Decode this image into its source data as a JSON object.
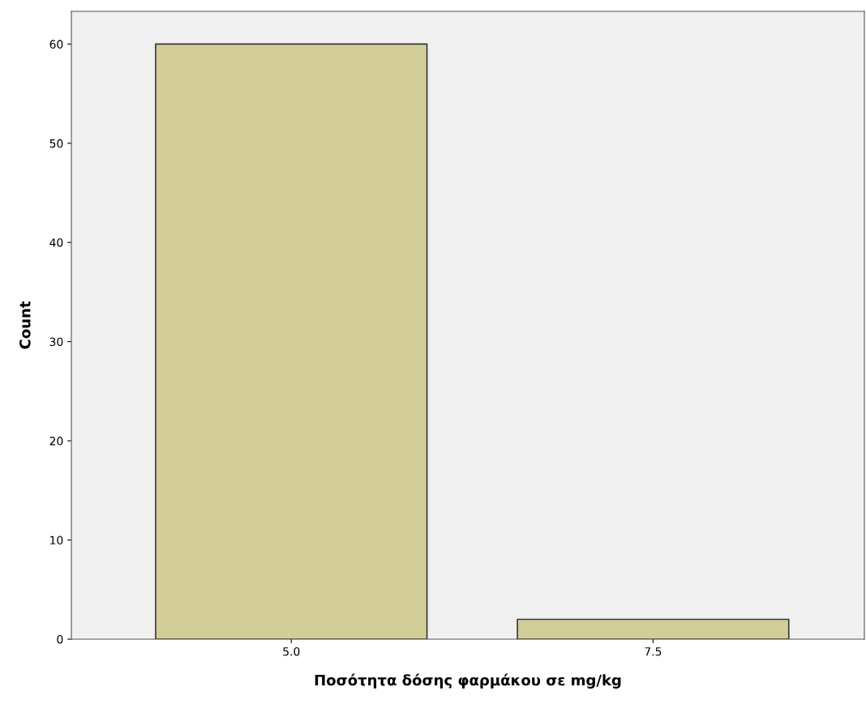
{
  "chart_data": {
    "type": "bar",
    "xlabel": "Ποσότητα δόσης φαρμάκου σε mg/kg",
    "ylabel": "Count",
    "categories": [
      "5.0",
      "7.5"
    ],
    "values": [
      60,
      2
    ],
    "color": "#d3cd98",
    "ylim": [
      0,
      63.3
    ],
    "yticks": [
      0,
      10,
      20,
      30,
      40,
      50,
      60
    ],
    "grid": false
  }
}
